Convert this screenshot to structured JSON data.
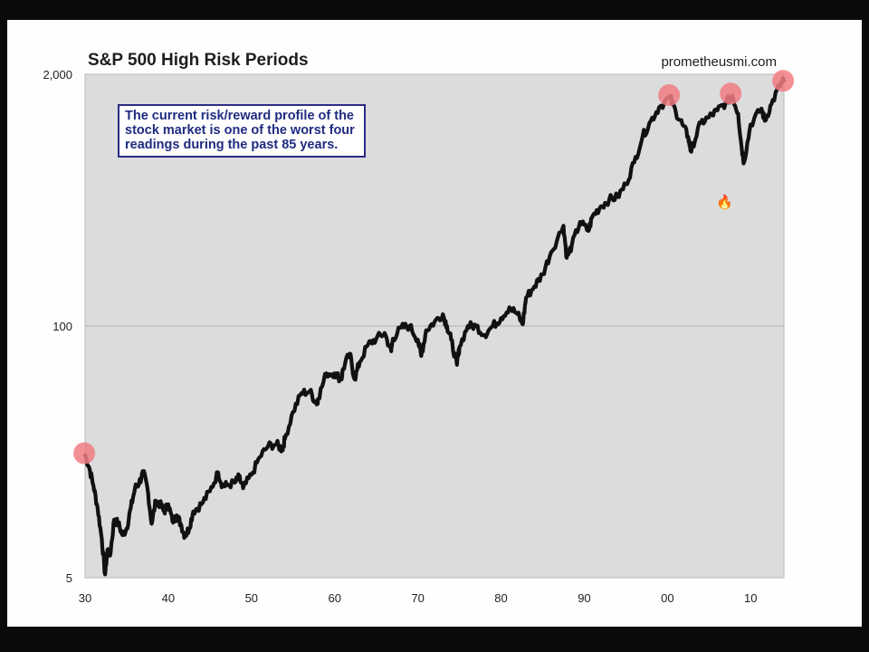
{
  "chart_data": {
    "type": "line",
    "title": "S&P 500 High Risk Periods",
    "source": "prometheusmi.com",
    "annotation": "The current risk/reward profile of the stock market is one of the worst four readings during the past 85 years.",
    "xlabel": "",
    "ylabel": "",
    "y_scale": "log",
    "ylim": [
      5,
      2000
    ],
    "xlim": [
      1930,
      2014
    ],
    "x_ticks": [
      {
        "value": 1930,
        "label": "30"
      },
      {
        "value": 1940,
        "label": "40"
      },
      {
        "value": 1950,
        "label": "50"
      },
      {
        "value": 1960,
        "label": "60"
      },
      {
        "value": 1970,
        "label": "70"
      },
      {
        "value": 1980,
        "label": "80"
      },
      {
        "value": 1990,
        "label": "90"
      },
      {
        "value": 2000,
        "label": "00"
      },
      {
        "value": 2010,
        "label": "10"
      }
    ],
    "y_ticks": [
      {
        "value": 5,
        "label": "5"
      },
      {
        "value": 100,
        "label": "100"
      },
      {
        "value": 2000,
        "label": "2,000"
      }
    ],
    "gridlines": [
      100
    ],
    "series": [
      {
        "color": "#111111",
        "points": [
          [
            1930.0,
            21.5
          ],
          [
            1930.5,
            18.5
          ],
          [
            1931.0,
            15.0
          ],
          [
            1931.5,
            11.5
          ],
          [
            1932.0,
            8.0
          ],
          [
            1932.4,
            5.2
          ],
          [
            1932.7,
            7.0
          ],
          [
            1933.0,
            6.5
          ],
          [
            1933.5,
            10.0
          ],
          [
            1934.0,
            9.5
          ],
          [
            1934.5,
            8.3
          ],
          [
            1935.0,
            9.0
          ],
          [
            1935.5,
            11.5
          ],
          [
            1936.0,
            14.5
          ],
          [
            1936.5,
            15.5
          ],
          [
            1937.0,
            17.5
          ],
          [
            1937.5,
            14.5
          ],
          [
            1938.0,
            9.5
          ],
          [
            1938.5,
            12.5
          ],
          [
            1939.0,
            12.0
          ],
          [
            1939.5,
            11.0
          ],
          [
            1940.0,
            12.0
          ],
          [
            1940.5,
            9.8
          ],
          [
            1941.0,
            10.5
          ],
          [
            1941.5,
            9.5
          ],
          [
            1942.0,
            8.2
          ],
          [
            1942.5,
            9.0
          ],
          [
            1943.0,
            11.0
          ],
          [
            1944.0,
            12.0
          ],
          [
            1945.0,
            14.0
          ],
          [
            1946.0,
            17.5
          ],
          [
            1946.5,
            15.0
          ],
          [
            1947.0,
            15.0
          ],
          [
            1948.0,
            15.5
          ],
          [
            1948.5,
            16.5
          ],
          [
            1949.0,
            14.5
          ],
          [
            1950.0,
            17.0
          ],
          [
            1951.0,
            21.0
          ],
          [
            1952.0,
            24.0
          ],
          [
            1953.0,
            24.5
          ],
          [
            1953.7,
            23.0
          ],
          [
            1954.0,
            26.0
          ],
          [
            1955.0,
            36.0
          ],
          [
            1956.0,
            45.0
          ],
          [
            1957.0,
            46.0
          ],
          [
            1957.8,
            40.0
          ],
          [
            1958.0,
            42.0
          ],
          [
            1959.0,
            57.0
          ],
          [
            1960.0,
            57.0
          ],
          [
            1960.8,
            53.0
          ],
          [
            1961.0,
            60.0
          ],
          [
            1961.8,
            72.0
          ],
          [
            1962.4,
            53.0
          ],
          [
            1963.0,
            65.0
          ],
          [
            1964.0,
            80.0
          ],
          [
            1965.0,
            86.0
          ],
          [
            1966.0,
            92.0
          ],
          [
            1966.8,
            74.0
          ],
          [
            1967.0,
            86.0
          ],
          [
            1968.0,
            98.0
          ],
          [
            1969.0,
            100.0
          ],
          [
            1970.0,
            85.0
          ],
          [
            1970.4,
            70.0
          ],
          [
            1971.0,
            95.0
          ],
          [
            1972.0,
            105.0
          ],
          [
            1973.0,
            115.0
          ],
          [
            1973.5,
            100.0
          ],
          [
            1974.0,
            85.0
          ],
          [
            1974.7,
            63.0
          ],
          [
            1975.0,
            78.0
          ],
          [
            1976.0,
            100.0
          ],
          [
            1977.0,
            100.0
          ],
          [
            1978.0,
            90.0
          ],
          [
            1979.0,
            100.0
          ],
          [
            1980.0,
            110.0
          ],
          [
            1981.0,
            125.0
          ],
          [
            1982.0,
            115.0
          ],
          [
            1982.6,
            102.0
          ],
          [
            1983.0,
            140.0
          ],
          [
            1984.0,
            160.0
          ],
          [
            1985.0,
            185.0
          ],
          [
            1986.0,
            240.0
          ],
          [
            1987.5,
            330.0
          ],
          [
            1987.9,
            225.0
          ],
          [
            1988.5,
            260.0
          ],
          [
            1989.5,
            345.0
          ],
          [
            1990.5,
            310.0
          ],
          [
            1991.0,
            370.0
          ],
          [
            1992.0,
            415.0
          ],
          [
            1993.0,
            450.0
          ],
          [
            1994.0,
            465.0
          ],
          [
            1995.0,
            540.0
          ],
          [
            1996.0,
            700.0
          ],
          [
            1997.0,
            950.0
          ],
          [
            1998.0,
            1150.0
          ],
          [
            1999.0,
            1350.0
          ],
          [
            2000.3,
            1520.0
          ],
          [
            2001.0,
            1280.0
          ],
          [
            2001.8,
            1100.0
          ],
          [
            2002.5,
            950.0
          ],
          [
            2002.8,
            800.0
          ],
          [
            2003.0,
            850.0
          ],
          [
            2004.0,
            1120.0
          ],
          [
            2005.0,
            1200.0
          ],
          [
            2006.0,
            1300.0
          ],
          [
            2007.0,
            1420.0
          ],
          [
            2007.8,
            1550.0
          ],
          [
            2008.5,
            1250.0
          ],
          [
            2008.9,
            850.0
          ],
          [
            2009.2,
            700.0
          ],
          [
            2010.0,
            1100.0
          ],
          [
            2011.3,
            1330.0
          ],
          [
            2011.7,
            1150.0
          ],
          [
            2012.5,
            1400.0
          ],
          [
            2013.5,
            1750.0
          ],
          [
            2014.0,
            1850.0
          ]
        ]
      }
    ],
    "highlights": [
      {
        "x": 1929.9,
        "y": 22.0
      },
      {
        "x": 2000.2,
        "y": 1560.0
      },
      {
        "x": 2007.6,
        "y": 1590.0
      },
      {
        "x": 2013.9,
        "y": 1850.0
      }
    ],
    "highlight_color": "#f07c83",
    "plot_background": "#dcdcdc",
    "callout_border": "#2b2b84",
    "callout_text_color": "#1f2b80"
  }
}
